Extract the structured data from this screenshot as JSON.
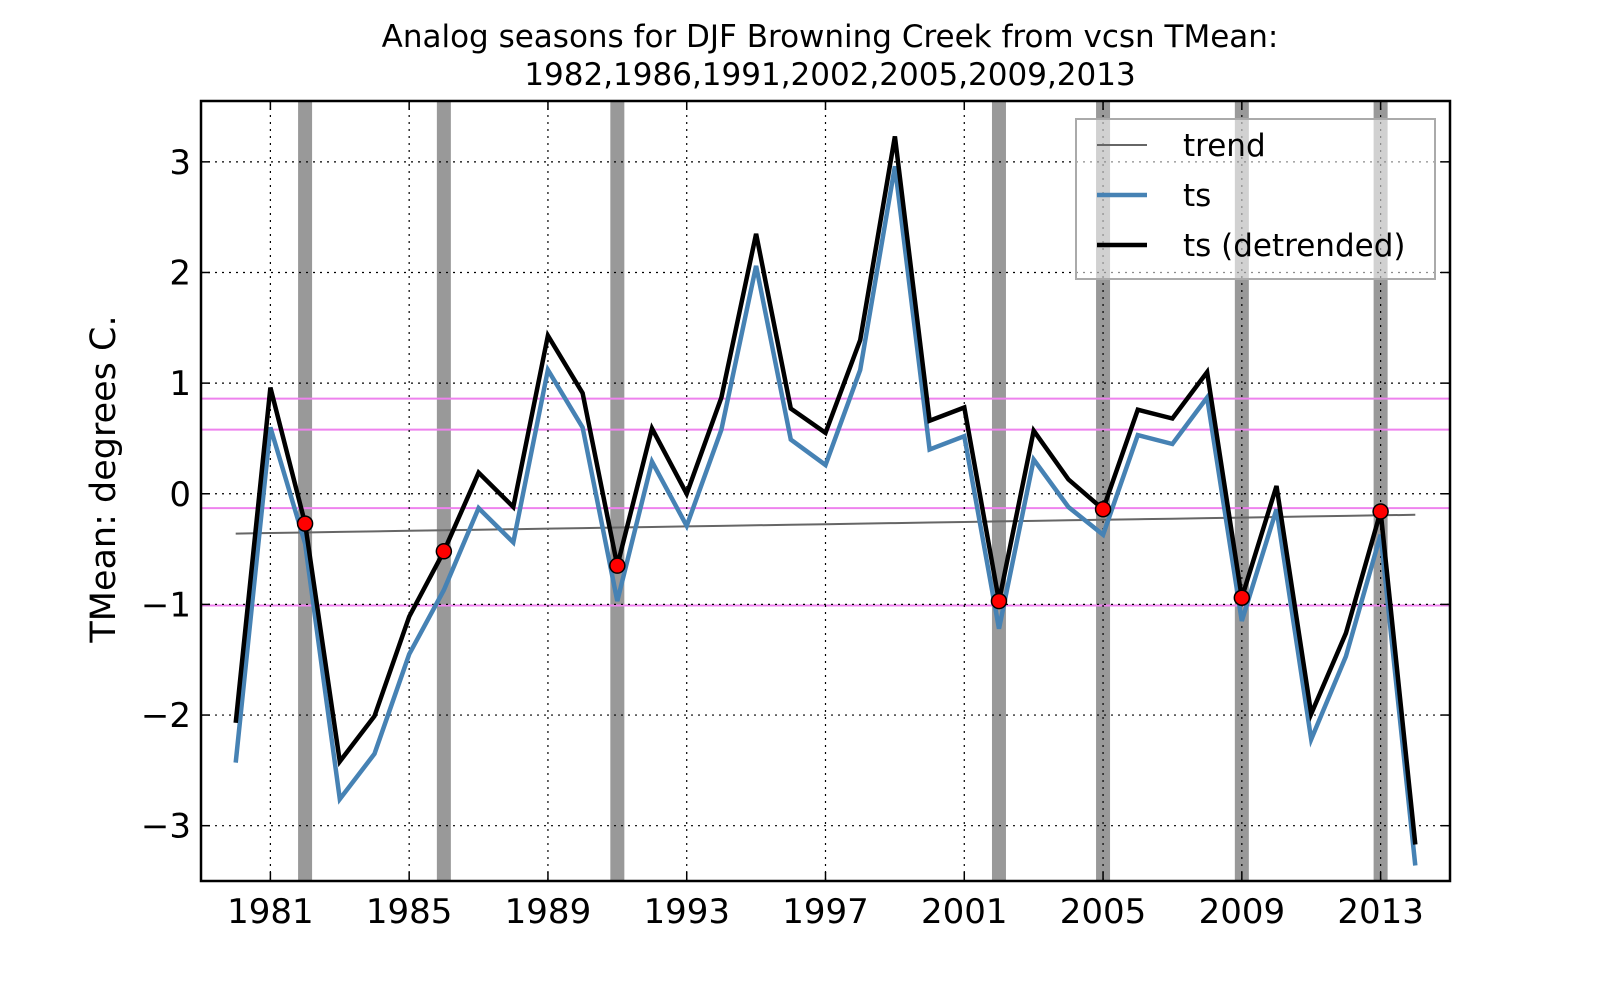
{
  "chart_data": {
    "type": "line",
    "title_line1": "Analog seasons for DJF Browning Creek from vcsn TMean:",
    "title_line2": "1982,1986,1991,2002,2005,2009,2013",
    "xlabel": "",
    "ylabel": "TMean: degrees C.",
    "xlim": [
      1979,
      2015
    ],
    "ylim": [
      -3.5,
      3.55
    ],
    "x_ticks": [
      1981,
      1985,
      1989,
      1993,
      1997,
      2001,
      2005,
      2009,
      2013
    ],
    "y_ticks": [
      -3,
      -2,
      -1,
      0,
      1,
      2,
      3
    ],
    "y_tick_labels": [
      "−3",
      "−2",
      "−1",
      "0",
      "1",
      "2",
      "3"
    ],
    "grid": true,
    "legend_position": "top-right",
    "x": [
      1980,
      1981,
      1982,
      1983,
      1984,
      1985,
      1986,
      1987,
      1988,
      1989,
      1990,
      1991,
      1992,
      1993,
      1994,
      1995,
      1996,
      1997,
      1998,
      1999,
      2000,
      2001,
      2002,
      2003,
      2004,
      2005,
      2006,
      2007,
      2008,
      2009,
      2010,
      2011,
      2012,
      2013,
      2014
    ],
    "series": [
      {
        "name": "trend",
        "color": "#666666",
        "values": [
          -0.36,
          -0.355,
          -0.35,
          -0.345,
          -0.34,
          -0.335,
          -0.33,
          -0.325,
          -0.32,
          -0.315,
          -0.31,
          -0.305,
          -0.3,
          -0.295,
          -0.29,
          -0.285,
          -0.28,
          -0.275,
          -0.27,
          -0.265,
          -0.26,
          -0.255,
          -0.25,
          -0.245,
          -0.24,
          -0.235,
          -0.23,
          -0.225,
          -0.22,
          -0.215,
          -0.21,
          -0.205,
          -0.2,
          -0.195,
          -0.19
        ]
      },
      {
        "name": "ts",
        "color": "#4682b4",
        "values": [
          -2.43,
          0.6,
          -0.45,
          -2.76,
          -2.35,
          -1.45,
          -0.87,
          -0.13,
          -0.44,
          1.12,
          0.6,
          -0.97,
          0.29,
          -0.29,
          0.58,
          2.06,
          0.49,
          0.26,
          1.12,
          2.96,
          0.4,
          0.52,
          -1.22,
          0.31,
          -0.12,
          -0.37,
          0.53,
          0.45,
          0.87,
          -1.15,
          -0.14,
          -2.22,
          -1.47,
          -0.37,
          -3.36
        ]
      },
      {
        "name": "ts (detrended)",
        "color": "#000000",
        "values": [
          -2.07,
          0.96,
          -0.27,
          -2.42,
          -2.01,
          -1.11,
          -0.52,
          0.19,
          -0.12,
          1.43,
          0.91,
          -0.65,
          0.59,
          0.0,
          0.87,
          2.35,
          0.77,
          0.55,
          1.39,
          3.23,
          0.66,
          0.78,
          -0.97,
          0.57,
          0.13,
          -0.14,
          0.76,
          0.68,
          1.1,
          -0.94,
          0.07,
          -1.99,
          -1.26,
          -0.16,
          -3.17
        ]
      }
    ],
    "analog_years": [
      1982,
      1986,
      1991,
      2002,
      2005,
      2009,
      2013
    ],
    "analog_values": [
      -0.27,
      -0.52,
      -0.65,
      -0.97,
      -0.14,
      -0.94,
      -0.16
    ],
    "threshold_lines": [
      0.86,
      0.58,
      -0.13,
      -1.01
    ],
    "colors": {
      "analog_band": "#999999",
      "threshold": "#ee82ee",
      "marker_fill": "#ff0000",
      "axes": "#000000",
      "grid": "#000000"
    }
  }
}
